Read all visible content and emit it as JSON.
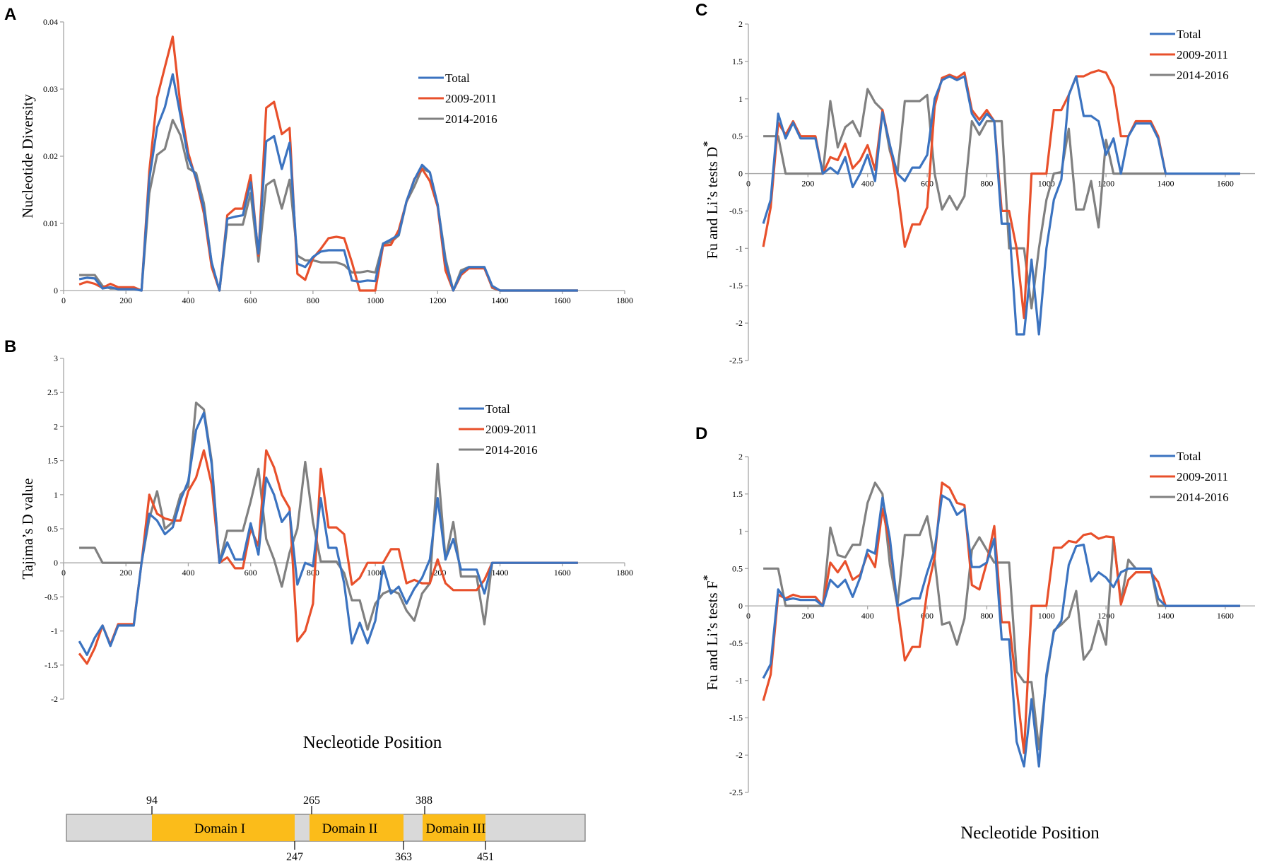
{
  "colors": {
    "Total": "#3b73c0",
    "2009-2011": "#e8502b",
    "2014-2016": "#808080",
    "domain": "#fbbc1a",
    "bar": "#d9d9d9"
  },
  "shared": {
    "x": [
      50,
      75,
      100,
      125,
      150,
      175,
      200,
      225,
      250,
      275,
      300,
      325,
      350,
      375,
      400,
      425,
      450,
      475,
      500,
      525,
      550,
      575,
      600,
      625,
      650,
      675,
      700,
      725,
      750,
      775,
      800,
      825,
      850,
      875,
      900,
      925,
      950,
      975,
      1000,
      1025,
      1050,
      1075,
      1100,
      1125,
      1150,
      1175,
      1200,
      1225,
      1250,
      1275,
      1300,
      1325,
      1350,
      1375,
      1400,
      1425,
      1450,
      1475,
      1500,
      1525,
      1550,
      1575,
      1600,
      1625,
      1650
    ]
  },
  "chart_data": [
    {
      "id": "A",
      "type": "line",
      "panel_letter": "A",
      "ylabel": "Nucleotide Diversity",
      "xlabel": "",
      "xlim": [
        0,
        1800
      ],
      "ylim": [
        0,
        0.04
      ],
      "xticks": [
        "0",
        "200",
        "400",
        "600",
        "800",
        "1000",
        "1200",
        "1400",
        "1600",
        "1800"
      ],
      "yticks": [
        "0",
        "0.01",
        "0.02",
        "0.03",
        "0.04"
      ],
      "legend": [
        "Total",
        "2009-2011",
        "2014-2016"
      ],
      "series": [
        {
          "name": "Total",
          "values": [
            0.0017,
            0.0019,
            0.0018,
            0.0003,
            0.0005,
            0.0002,
            0.0002,
            0.0002,
            0.0,
            0.0166,
            0.0243,
            0.0273,
            0.0322,
            0.026,
            0.0197,
            0.0168,
            0.0122,
            0.0042,
            0.0,
            0.0107,
            0.011,
            0.0112,
            0.0161,
            0.0055,
            0.0222,
            0.023,
            0.0181,
            0.022,
            0.004,
            0.0035,
            0.005,
            0.0058,
            0.006,
            0.006,
            0.006,
            0.0015,
            0.0013,
            0.0015,
            0.0014,
            0.007,
            0.0076,
            0.0083,
            0.0133,
            0.0165,
            0.0187,
            0.0176,
            0.0128,
            0.0042,
            0.0,
            0.0026,
            0.0035,
            0.0035,
            0.0035,
            0.0007,
            0,
            0,
            0,
            0,
            0,
            0,
            0,
            0,
            0,
            0,
            0
          ]
        },
        {
          "name": "2009-2011",
          "values": [
            0.0009,
            0.0013,
            0.001,
            0.0004,
            0.001,
            0.0005,
            0.0005,
            0.0005,
            0.0,
            0.0178,
            0.0287,
            0.0333,
            0.0378,
            0.0275,
            0.0205,
            0.0165,
            0.0115,
            0.0035,
            0.0,
            0.0112,
            0.0122,
            0.0122,
            0.0172,
            0.0052,
            0.0272,
            0.0281,
            0.0233,
            0.0242,
            0.0025,
            0.0016,
            0.0048,
            0.0062,
            0.0078,
            0.008,
            0.0078,
            0.0042,
            0.0,
            0.0,
            0.0,
            0.0067,
            0.0068,
            0.009,
            0.0132,
            0.0166,
            0.0181,
            0.0163,
            0.0125,
            0.003,
            0.0,
            0.0023,
            0.0033,
            0.0033,
            0.0033,
            0.0005,
            0,
            0,
            0,
            0,
            0,
            0,
            0,
            0,
            0,
            0,
            0
          ]
        },
        {
          "name": "2014-2016",
          "values": [
            0.0023,
            0.0023,
            0.0023,
            0.0007,
            0.0003,
            0.0003,
            0.0003,
            0.0003,
            0.0,
            0.0145,
            0.0202,
            0.0211,
            0.0254,
            0.0231,
            0.0182,
            0.0175,
            0.013,
            0.004,
            0.0,
            0.0098,
            0.0098,
            0.0098,
            0.0145,
            0.0043,
            0.0157,
            0.0165,
            0.0122,
            0.0165,
            0.0052,
            0.0045,
            0.0045,
            0.0042,
            0.0042,
            0.0042,
            0.0038,
            0.0027,
            0.0027,
            0.0029,
            0.0027,
            0.007,
            0.0072,
            0.0082,
            0.0132,
            0.0155,
            0.0182,
            0.0176,
            0.0128,
            0.0048,
            0.0,
            0.003,
            0.0035,
            0.0035,
            0.0035,
            0.0004,
            0,
            0,
            0,
            0,
            0,
            0,
            0,
            0,
            0,
            0,
            0
          ]
        }
      ]
    },
    {
      "id": "B",
      "type": "line",
      "panel_letter": "B",
      "ylabel": "Tajima’s D value",
      "xlabel": "Necleotide Position",
      "xlim": [
        0,
        1800
      ],
      "ylim": [
        -2,
        3
      ],
      "xticks": [
        "0",
        "200",
        "400",
        "600",
        "800",
        "1000",
        "1200",
        "1400",
        "1600",
        "1800"
      ],
      "yticks": [
        "-2",
        "-1.5",
        "-1",
        "-0.5",
        "0",
        "0.5",
        "1",
        "1.5",
        "2",
        "2.5",
        "3"
      ],
      "legend": [
        "Total",
        "2009-2011",
        "2014-2016"
      ],
      "series": [
        {
          "name": "Total",
          "values": [
            -1.15,
            -1.35,
            -1.1,
            -0.92,
            -1.22,
            -0.92,
            -0.92,
            -0.92,
            0.0,
            0.72,
            0.62,
            0.42,
            0.52,
            0.92,
            1.2,
            1.95,
            2.2,
            1.45,
            0.0,
            0.3,
            0.05,
            0.05,
            0.58,
            0.12,
            1.25,
            1.0,
            0.6,
            0.75,
            -0.32,
            0.0,
            -0.05,
            0.95,
            0.22,
            0.22,
            -0.3,
            -1.18,
            -0.88,
            -1.18,
            -0.85,
            -0.05,
            -0.45,
            -0.35,
            -0.6,
            -0.38,
            -0.22,
            0.05,
            0.95,
            0.05,
            0.35,
            -0.1,
            -0.1,
            -0.1,
            -0.45,
            0.0,
            0,
            0,
            0,
            0,
            0,
            0,
            0,
            0,
            0,
            0,
            0
          ]
        },
        {
          "name": "2009-2011",
          "values": [
            -1.33,
            -1.48,
            -1.25,
            -0.92,
            -1.2,
            -0.9,
            -0.9,
            -0.9,
            0.0,
            1.0,
            0.72,
            0.65,
            0.62,
            0.62,
            1.05,
            1.25,
            1.65,
            1.15,
            0.0,
            0.08,
            -0.08,
            -0.08,
            0.5,
            0.25,
            1.65,
            1.4,
            1.0,
            0.8,
            -1.15,
            -1.0,
            -0.6,
            1.38,
            0.52,
            0.52,
            0.42,
            -0.32,
            -0.22,
            0.0,
            0.0,
            0.0,
            0.2,
            0.2,
            -0.3,
            -0.25,
            -0.3,
            -0.3,
            0.05,
            -0.3,
            -0.4,
            -0.4,
            -0.4,
            -0.4,
            -0.25,
            0.0,
            0,
            0,
            0,
            0,
            0,
            0,
            0,
            0,
            0,
            0,
            0
          ]
        },
        {
          "name": "2014-2016",
          "values": [
            0.22,
            0.22,
            0.22,
            0.0,
            0.0,
            0.0,
            0.0,
            0.0,
            0.0,
            0.65,
            1.05,
            0.5,
            0.6,
            1.0,
            1.12,
            2.35,
            2.25,
            1.5,
            0.0,
            0.47,
            0.47,
            0.47,
            0.9,
            1.38,
            0.35,
            0.05,
            -0.35,
            0.15,
            0.5,
            1.48,
            0.6,
            0.02,
            0.02,
            0.02,
            -0.15,
            -0.55,
            -0.55,
            -0.98,
            -0.6,
            -0.45,
            -0.4,
            -0.45,
            -0.7,
            -0.85,
            -0.45,
            -0.3,
            1.45,
            0.05,
            0.6,
            -0.2,
            -0.2,
            -0.2,
            -0.9,
            0.0,
            0,
            0,
            0,
            0,
            0,
            0,
            0,
            0,
            0,
            0,
            0
          ]
        }
      ]
    },
    {
      "id": "C",
      "type": "line",
      "panel_letter": "C",
      "ylabel": "Fu and Li’s tests D",
      "ylabel_sup": "*",
      "xlabel": "",
      "xlim": [
        0,
        1700
      ],
      "ylim": [
        -2.5,
        2
      ],
      "xticks": [
        "0",
        "200",
        "400",
        "600",
        "800",
        "1000",
        "1200",
        "1400",
        "1600"
      ],
      "yticks": [
        "-2.5",
        "-2",
        "-1.5",
        "-1",
        "-0.5",
        "0",
        "0.5",
        "1",
        "1.5",
        "2"
      ],
      "legend": [
        "Total",
        "2009-2011",
        "2014-2016"
      ],
      "series": [
        {
          "name": "Total",
          "values": [
            -0.67,
            -0.35,
            0.8,
            0.47,
            0.68,
            0.47,
            0.47,
            0.47,
            0.0,
            0.08,
            0.0,
            0.22,
            -0.18,
            0.0,
            0.25,
            -0.1,
            0.82,
            0.38,
            0.0,
            -0.1,
            0.08,
            0.08,
            0.25,
            1.0,
            1.25,
            1.3,
            1.25,
            1.3,
            0.8,
            0.65,
            0.8,
            0.7,
            -0.67,
            -0.67,
            -2.15,
            -2.15,
            -1.15,
            -2.15,
            -1.0,
            -0.35,
            -0.08,
            1.05,
            1.3,
            0.77,
            0.77,
            0.7,
            0.25,
            0.47,
            0.0,
            0.5,
            0.67,
            0.67,
            0.67,
            0.47,
            0,
            0,
            0,
            0,
            0,
            0,
            0,
            0,
            0,
            0,
            0
          ]
        },
        {
          "name": "2009-2011",
          "values": [
            -0.98,
            -0.45,
            0.68,
            0.52,
            0.7,
            0.5,
            0.5,
            0.5,
            0.0,
            0.22,
            0.18,
            0.4,
            0.07,
            0.18,
            0.38,
            0.05,
            0.85,
            0.38,
            -0.2,
            -0.98,
            -0.68,
            -0.68,
            -0.45,
            0.9,
            1.28,
            1.32,
            1.28,
            1.35,
            0.85,
            0.72,
            0.85,
            0.7,
            -0.5,
            -0.5,
            -1.0,
            -1.93,
            0.0,
            0.0,
            0.0,
            0.85,
            0.85,
            1.05,
            1.3,
            1.3,
            1.35,
            1.38,
            1.35,
            1.15,
            0.5,
            0.5,
            0.7,
            0.7,
            0.7,
            0.5,
            0,
            0,
            0,
            0,
            0,
            0,
            0,
            0,
            0,
            0,
            0
          ]
        },
        {
          "name": "2014-2016",
          "values": [
            0.5,
            0.5,
            0.5,
            0.0,
            0.0,
            0.0,
            0.0,
            0.0,
            0.0,
            0.97,
            0.35,
            0.62,
            0.7,
            0.5,
            1.13,
            0.95,
            0.85,
            0.3,
            0.0,
            0.97,
            0.97,
            0.97,
            1.05,
            0.0,
            -0.48,
            -0.3,
            -0.48,
            -0.3,
            0.7,
            0.52,
            0.7,
            0.7,
            0.7,
            -1.0,
            -1.0,
            -1.0,
            -1.8,
            -1.0,
            -0.35,
            0.0,
            0.02,
            0.6,
            -0.48,
            -0.48,
            -0.1,
            -0.72,
            0.45,
            0.0,
            0.0,
            0.0,
            0.0,
            0.0,
            0.0,
            0.0,
            0,
            0,
            0,
            0,
            0,
            0,
            0,
            0,
            0,
            0,
            0
          ]
        }
      ]
    },
    {
      "id": "D",
      "type": "line",
      "panel_letter": "D",
      "ylabel": "Fu and Li’s tests F",
      "ylabel_sup": "*",
      "xlabel": "Necleotide Position",
      "xlim": [
        0,
        1700
      ],
      "ylim": [
        -2.5,
        2
      ],
      "xticks": [
        "0",
        "200",
        "400",
        "600",
        "800",
        "1000",
        "1200",
        "1400",
        "1600"
      ],
      "yticks": [
        "-2.5",
        "-2",
        "-1.5",
        "-1",
        "-0.5",
        "0",
        "0.5",
        "1",
        "1.5",
        "2"
      ],
      "legend": [
        "Total",
        "2009-2011",
        "2014-2016"
      ],
      "series": [
        {
          "name": "Total",
          "values": [
            -0.97,
            -0.78,
            0.22,
            0.08,
            0.1,
            0.08,
            0.08,
            0.08,
            0.0,
            0.35,
            0.25,
            0.35,
            0.12,
            0.38,
            0.75,
            0.7,
            1.45,
            0.9,
            0.0,
            0.05,
            0.1,
            0.1,
            0.45,
            0.75,
            1.48,
            1.42,
            1.22,
            1.3,
            0.52,
            0.52,
            0.58,
            0.9,
            -0.45,
            -0.45,
            -1.82,
            -2.15,
            -1.25,
            -2.15,
            -0.92,
            -0.35,
            -0.2,
            0.55,
            0.8,
            0.82,
            0.33,
            0.45,
            0.38,
            0.25,
            0.45,
            0.5,
            0.5,
            0.5,
            0.5,
            0.1,
            0,
            0,
            0,
            0,
            0,
            0,
            0,
            0,
            0,
            0,
            0
          ]
        },
        {
          "name": "2009-2011",
          "values": [
            -1.27,
            -0.92,
            0.15,
            0.1,
            0.15,
            0.12,
            0.12,
            0.12,
            0.0,
            0.58,
            0.45,
            0.6,
            0.35,
            0.42,
            0.7,
            0.52,
            1.3,
            0.82,
            0.0,
            -0.73,
            -0.55,
            -0.55,
            0.2,
            0.65,
            1.65,
            1.58,
            1.38,
            1.35,
            0.28,
            0.22,
            0.58,
            1.07,
            -0.22,
            -0.22,
            -1.1,
            -1.97,
            0.0,
            0.0,
            0.0,
            0.78,
            0.78,
            0.87,
            0.85,
            0.95,
            0.97,
            0.9,
            0.93,
            0.92,
            0.02,
            0.35,
            0.45,
            0.45,
            0.45,
            0.32,
            0,
            0,
            0,
            0,
            0,
            0,
            0,
            0,
            0,
            0,
            0
          ]
        },
        {
          "name": "2014-2016",
          "values": [
            0.5,
            0.5,
            0.5,
            0.0,
            0.0,
            0.0,
            0.0,
            0.0,
            0.0,
            1.05,
            0.68,
            0.65,
            0.82,
            0.82,
            1.38,
            1.65,
            1.5,
            0.55,
            0.0,
            0.95,
            0.95,
            0.95,
            1.2,
            0.62,
            -0.25,
            -0.22,
            -0.52,
            -0.17,
            0.75,
            0.92,
            0.75,
            0.58,
            0.58,
            0.58,
            -0.88,
            -1.02,
            -1.02,
            -1.92,
            -0.97,
            -0.33,
            -0.25,
            -0.15,
            0.2,
            -0.72,
            -0.58,
            -0.2,
            -0.52,
            0.92,
            0.05,
            0.62,
            0.5,
            0.5,
            0.5,
            0.0,
            0,
            0,
            0,
            0,
            0,
            0,
            0,
            0,
            0,
            0,
            0
          ]
        }
      ]
    }
  ],
  "domain_bar": {
    "domains": [
      {
        "label": "Domain I",
        "start": "94",
        "end": "247"
      },
      {
        "label": "Domain II",
        "start": "265",
        "end": "363"
      },
      {
        "label": "Domain III",
        "start": "388",
        "end": "451"
      }
    ]
  }
}
